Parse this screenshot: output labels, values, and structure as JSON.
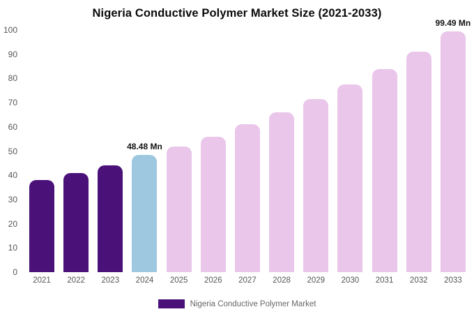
{
  "chart_data": {
    "type": "bar",
    "title": "Nigeria Conductive Polymer Market Size (2021-2033)",
    "xlabel": "",
    "ylabel": "",
    "categories": [
      "2021",
      "2022",
      "2023",
      "2024",
      "2025",
      "2026",
      "2027",
      "2028",
      "2029",
      "2030",
      "2031",
      "2032",
      "2033"
    ],
    "values": [
      38,
      41,
      44,
      48.48,
      52,
      56,
      61,
      66,
      71.5,
      77.5,
      84,
      91,
      99.49
    ],
    "ylim": [
      0,
      100
    ],
    "y_ticks": [
      0,
      10,
      20,
      30,
      40,
      50,
      60,
      70,
      80,
      90,
      100
    ],
    "grid": false,
    "legend_position": "bottom",
    "legend_label": "Nigeria Conductive Polymer Market",
    "bar_colors": [
      "#4a1179",
      "#4a1179",
      "#4a1179",
      "#9dc8e0",
      "#e9c6ea",
      "#e9c6ea",
      "#e9c6ea",
      "#e9c6ea",
      "#e9c6ea",
      "#e9c6ea",
      "#e9c6ea",
      "#e9c6ea",
      "#e9c6ea"
    ],
    "annotations": [
      {
        "category": "2024",
        "text": "48.48 Mn"
      },
      {
        "category": "2033",
        "text": "99.49 Mn"
      }
    ]
  },
  "colors": {
    "historical_bar": "#4a1179",
    "highlight_bar": "#9dc8e0",
    "forecast_bar": "#e9c6ea",
    "axis_text": "#555555",
    "title_text": "#0a0a0a",
    "legend_text": "#666666",
    "background": "#ffffff"
  }
}
